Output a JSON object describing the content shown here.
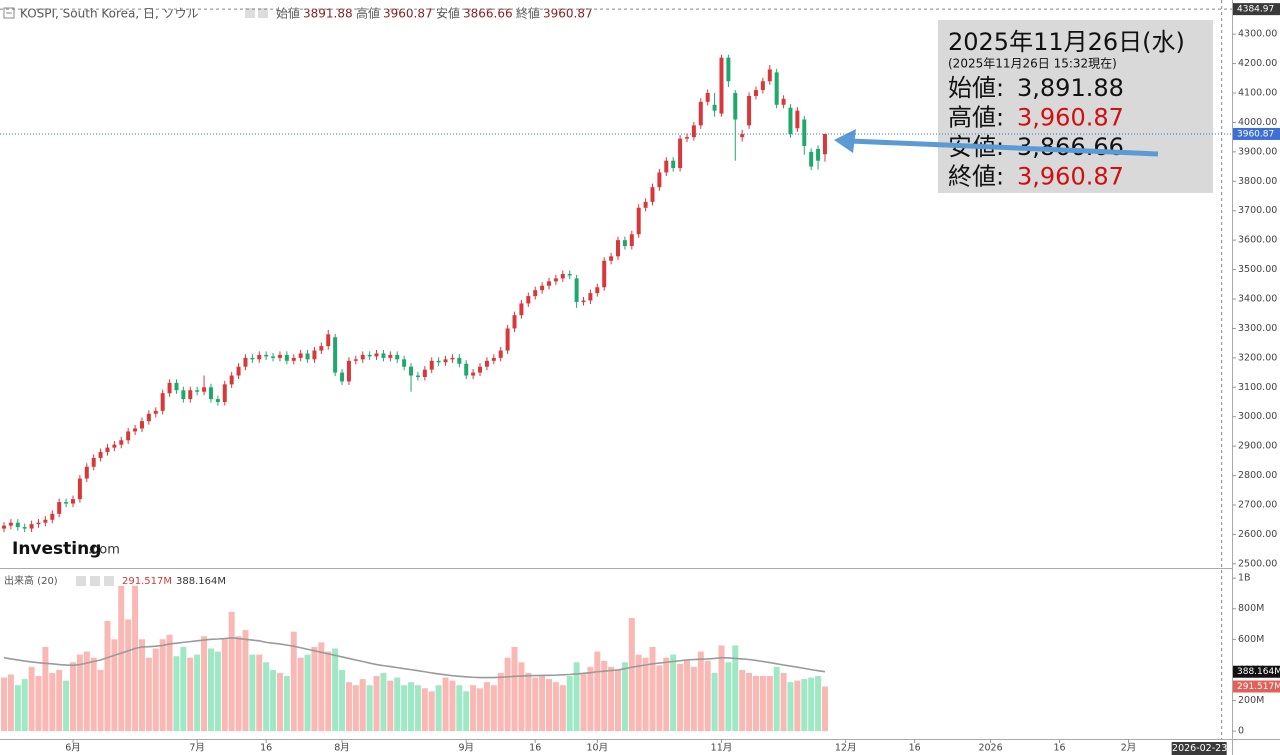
{
  "chart_data": {
    "type": "candlestick",
    "title": "KOSPI, South Korea, 日, ソウル",
    "header_labels": [
      "始値",
      "高値",
      "安値",
      "終値"
    ],
    "up_color": "#d9383a",
    "down_color": "#1fa86b",
    "up_volume_color": "#f9b8b3",
    "down_volume_color": "#9ee8c5",
    "ma_color": "#9a9a9a",
    "candles": [
      [
        2620,
        2642,
        2608,
        2630
      ],
      [
        2630,
        2652,
        2618,
        2640
      ],
      [
        2640,
        2652,
        2613,
        2625
      ],
      [
        2625,
        2637,
        2608,
        2620
      ],
      [
        2620,
        2647,
        2608,
        2635
      ],
      [
        2635,
        2652,
        2623,
        2640
      ],
      [
        2640,
        2662,
        2628,
        2650
      ],
      [
        2650,
        2682,
        2638,
        2670
      ],
      [
        2670,
        2722,
        2658,
        2710
      ],
      [
        2710,
        2722,
        2693,
        2705
      ],
      [
        2705,
        2732,
        2693,
        2720
      ],
      [
        2720,
        2802,
        2708,
        2790
      ],
      [
        2790,
        2842,
        2778,
        2830
      ],
      [
        2830,
        2872,
        2818,
        2860
      ],
      [
        2860,
        2892,
        2848,
        2880
      ],
      [
        2880,
        2907,
        2868,
        2895
      ],
      [
        2895,
        2917,
        2883,
        2905
      ],
      [
        2905,
        2932,
        2893,
        2920
      ],
      [
        2920,
        2962,
        2908,
        2950
      ],
      [
        2950,
        2972,
        2938,
        2960
      ],
      [
        2960,
        2997,
        2948,
        2985
      ],
      [
        2985,
        3022,
        2973,
        3010
      ],
      [
        3010,
        3032,
        2998,
        3020
      ],
      [
        3020,
        3092,
        3008,
        3080
      ],
      [
        3080,
        3127,
        3068,
        3115
      ],
      [
        3115,
        3127,
        3078,
        3090
      ],
      [
        3090,
        3102,
        3048,
        3060
      ],
      [
        3060,
        3102,
        3048,
        3090
      ],
      [
        3090,
        3102,
        3073,
        3085
      ],
      [
        3085,
        3140,
        3073,
        3100
      ],
      [
        3100,
        3112,
        3048,
        3060
      ],
      [
        3060,
        3072,
        3038,
        3050
      ],
      [
        3050,
        3122,
        3038,
        3110
      ],
      [
        3110,
        3152,
        3098,
        3140
      ],
      [
        3140,
        3182,
        3128,
        3170
      ],
      [
        3170,
        3212,
        3158,
        3200
      ],
      [
        3200,
        3212,
        3183,
        3195
      ],
      [
        3195,
        3222,
        3183,
        3210
      ],
      [
        3210,
        3222,
        3193,
        3205
      ],
      [
        3205,
        3217,
        3188,
        3200
      ],
      [
        3200,
        3222,
        3188,
        3210
      ],
      [
        3210,
        3222,
        3178,
        3190
      ],
      [
        3190,
        3212,
        3178,
        3200
      ],
      [
        3200,
        3227,
        3188,
        3215
      ],
      [
        3215,
        3227,
        3183,
        3195
      ],
      [
        3195,
        3237,
        3183,
        3225
      ],
      [
        3225,
        3252,
        3213,
        3240
      ],
      [
        3240,
        3295,
        3228,
        3280
      ],
      [
        3270,
        3282,
        3138,
        3150
      ],
      [
        3150,
        3162,
        3108,
        3120
      ],
      [
        3120,
        3202,
        3108,
        3190
      ],
      [
        3190,
        3207,
        3178,
        3195
      ],
      [
        3195,
        3222,
        3183,
        3210
      ],
      [
        3210,
        3222,
        3193,
        3205
      ],
      [
        3205,
        3227,
        3193,
        3215
      ],
      [
        3215,
        3227,
        3188,
        3200
      ],
      [
        3200,
        3222,
        3188,
        3210
      ],
      [
        3210,
        3222,
        3183,
        3195
      ],
      [
        3195,
        3207,
        3158,
        3170
      ],
      [
        3170,
        3182,
        3085,
        3140
      ],
      [
        3140,
        3152,
        3123,
        3135
      ],
      [
        3135,
        3172,
        3123,
        3160
      ],
      [
        3160,
        3202,
        3148,
        3190
      ],
      [
        3190,
        3202,
        3173,
        3185
      ],
      [
        3185,
        3207,
        3173,
        3195
      ],
      [
        3195,
        3212,
        3183,
        3200
      ],
      [
        3200,
        3212,
        3168,
        3180
      ],
      [
        3180,
        3192,
        3128,
        3140
      ],
      [
        3140,
        3162,
        3128,
        3150
      ],
      [
        3150,
        3182,
        3138,
        3170
      ],
      [
        3170,
        3202,
        3158,
        3190
      ],
      [
        3190,
        3212,
        3178,
        3200
      ],
      [
        3200,
        3237,
        3188,
        3225
      ],
      [
        3225,
        3312,
        3213,
        3300
      ],
      [
        3300,
        3357,
        3288,
        3345
      ],
      [
        3345,
        3397,
        3333,
        3385
      ],
      [
        3385,
        3422,
        3373,
        3410
      ],
      [
        3410,
        3442,
        3398,
        3430
      ],
      [
        3430,
        3457,
        3418,
        3445
      ],
      [
        3445,
        3472,
        3433,
        3460
      ],
      [
        3460,
        3482,
        3448,
        3470
      ],
      [
        3470,
        3497,
        3458,
        3485
      ],
      [
        3485,
        3497,
        3468,
        3480
      ],
      [
        3470,
        3482,
        3370,
        3390
      ],
      [
        3390,
        3407,
        3378,
        3395
      ],
      [
        3395,
        3432,
        3383,
        3420
      ],
      [
        3420,
        3452,
        3408,
        3440
      ],
      [
        3440,
        3542,
        3428,
        3530
      ],
      [
        3530,
        3557,
        3518,
        3545
      ],
      [
        3545,
        3612,
        3533,
        3600
      ],
      [
        3600,
        3612,
        3568,
        3580
      ],
      [
        3580,
        3632,
        3568,
        3620
      ],
      [
        3620,
        3722,
        3608,
        3710
      ],
      [
        3710,
        3742,
        3698,
        3730
      ],
      [
        3730,
        3792,
        3718,
        3780
      ],
      [
        3780,
        3842,
        3768,
        3830
      ],
      [
        3830,
        3882,
        3818,
        3870
      ],
      [
        3870,
        3882,
        3833,
        3845
      ],
      [
        3845,
        3957,
        3833,
        3945
      ],
      [
        3945,
        3962,
        3933,
        3950
      ],
      [
        3950,
        4002,
        3938,
        3990
      ],
      [
        3990,
        4082,
        3978,
        4070
      ],
      [
        4070,
        4112,
        4058,
        4100
      ],
      [
        4060,
        4100,
        4020,
        4040
      ],
      [
        4030,
        4230,
        4020,
        4220
      ],
      [
        4220,
        4230,
        4120,
        4140
      ],
      [
        4100,
        4110,
        3870,
        4010
      ],
      [
        3950,
        3975,
        3935,
        3960
      ],
      [
        3990,
        4102,
        3978,
        4090
      ],
      [
        4090,
        4122,
        4078,
        4110
      ],
      [
        4110,
        4152,
        4098,
        4140
      ],
      [
        4140,
        4195,
        4128,
        4180
      ],
      [
        4170,
        4182,
        4048,
        4060
      ],
      [
        4060,
        4092,
        4048,
        4080
      ],
      [
        4050,
        4062,
        3948,
        3960
      ],
      [
        3980,
        4052,
        3968,
        4040
      ],
      [
        4010,
        4022,
        3890,
        3920
      ],
      [
        3900,
        3912,
        3838,
        3850
      ],
      [
        3910,
        3922,
        3840,
        3870
      ],
      [
        3891.88,
        3960.87,
        3866.66,
        3960.87
      ]
    ],
    "volume": [
      350000000.0,
      370000000.0,
      300000000.0,
      340000000.0,
      420000000.0,
      360000000.0,
      550000000.0,
      380000000.0,
      400000000.0,
      330000000.0,
      450000000.0,
      500000000.0,
      520000000.0,
      480000000.0,
      400000000.0,
      720000000.0,
      600000000.0,
      950000000.0,
      730000000.0,
      950000000.0,
      600000000.0,
      480000000.0,
      540000000.0,
      600000000.0,
      630000000.0,
      490000000.0,
      550000000.0,
      480000000.0,
      500000000.0,
      620000000.0,
      540000000.0,
      520000000.0,
      600000000.0,
      780000000.0,
      620000000.0,
      660000000.0,
      500000000.0,
      500000000.0,
      450000000.0,
      400000000.0,
      380000000.0,
      360000000.0,
      650000000.0,
      480000000.0,
      500000000.0,
      550000000.0,
      580000000.0,
      520000000.0,
      540000000.0,
      400000000.0,
      320000000.0,
      300000000.0,
      340000000.0,
      300000000.0,
      360000000.0,
      380000000.0,
      330000000.0,
      350000000.0,
      300000000.0,
      320000000.0,
      300000000.0,
      280000000.0,
      260000000.0,
      300000000.0,
      350000000.0,
      330000000.0,
      300000000.0,
      260000000.0,
      300000000.0,
      280000000.0,
      320000000.0,
      300000000.0,
      380000000.0,
      480000000.0,
      550000000.0,
      450000000.0,
      380000000.0,
      350000000.0,
      360000000.0,
      340000000.0,
      320000000.0,
      300000000.0,
      360000000.0,
      450000000.0,
      380000000.0,
      420000000.0,
      520000000.0,
      460000000.0,
      420000000.0,
      400000000.0,
      450000000.0,
      740000000.0,
      500000000.0,
      480000000.0,
      550000000.0,
      430000000.0,
      480000000.0,
      500000000.0,
      440000000.0,
      460000000.0,
      420000000.0,
      520000000.0,
      460000000.0,
      380000000.0,
      560000000.0,
      450000000.0,
      560000000.0,
      400000000.0,
      380000000.0,
      360000000.0,
      360000000.0,
      360000000.0,
      420000000.0,
      380000000.0,
      320000000.0,
      330000000.0,
      340000000.0,
      350000000.0,
      360000000.0,
      291517000.0
    ],
    "volume_ma": [
      480000000.0,
      472000000.0,
      465000000.0,
      458000000.0,
      452000000.0,
      447000000.0,
      443000000.0,
      440000000.0,
      435000000.0,
      432000000.0,
      430000000.0,
      435000000.0,
      445000000.0,
      455000000.0,
      465000000.0,
      480000000.0,
      495000000.0,
      510000000.0,
      525000000.0,
      540000000.0,
      550000000.0,
      552000000.0,
      555000000.0,
      560000000.0,
      570000000.0,
      575000000.0,
      580000000.0,
      585000000.0,
      590000000.0,
      595000000.0,
      600000000.0,
      602000000.0,
      605000000.0,
      610000000.0,
      605000000.0,
      600000000.0,
      595000000.0,
      590000000.0,
      580000000.0,
      575000000.0,
      570000000.0,
      562000000.0,
      555000000.0,
      545000000.0,
      535000000.0,
      525000000.0,
      515000000.0,
      505000000.0,
      495000000.0,
      485000000.0,
      475000000.0,
      465000000.0,
      455000000.0,
      445000000.0,
      435000000.0,
      428000000.0,
      422000000.0,
      415000000.0,
      408000000.0,
      402000000.0,
      395000000.0,
      388000000.0,
      380000000.0,
      374000000.0,
      368000000.0,
      362000000.0,
      358000000.0,
      355000000.0,
      352000000.0,
      350000000.0,
      350000000.0,
      350000000.0,
      352000000.0,
      355000000.0,
      358000000.0,
      360000000.0,
      362000000.0,
      363000000.0,
      364000000.0,
      365000000.0,
      366000000.0,
      368000000.0,
      370000000.0,
      374000000.0,
      378000000.0,
      382000000.0,
      388000000.0,
      392000000.0,
      396000000.0,
      400000000.0,
      408000000.0,
      418000000.0,
      425000000.0,
      432000000.0,
      440000000.0,
      445000000.0,
      450000000.0,
      455000000.0,
      460000000.0,
      465000000.0,
      468000000.0,
      470000000.0,
      472000000.0,
      475000000.0,
      480000000.0,
      478000000.0,
      475000000.0,
      472000000.0,
      468000000.0,
      462000000.0,
      455000000.0,
      448000000.0,
      440000000.0,
      432000000.0,
      425000000.0,
      418000000.0,
      410000000.0,
      402000000.0,
      395000000.0,
      388164000.0
    ],
    "volume_legend": {
      "title": "出来高 (20)",
      "values": [
        291517000.0,
        388164000.0
      ],
      "value_labels": [
        "291.517M",
        "388.164M"
      ]
    },
    "xlim": [
      0,
      178
    ],
    "xticks": [
      {
        "value": 10,
        "label": "6月"
      },
      {
        "value": 28,
        "label": "7月"
      },
      {
        "value": 38,
        "label": "16"
      },
      {
        "value": 49,
        "label": "8月"
      },
      {
        "value": 67,
        "label": "9月"
      },
      {
        "value": 77,
        "label": "16"
      },
      {
        "value": 86,
        "label": "10月"
      },
      {
        "value": 104,
        "label": "11月"
      },
      {
        "value": 122,
        "label": "12月"
      },
      {
        "value": 132,
        "label": "16"
      },
      {
        "value": 143,
        "label": "2026"
      },
      {
        "value": 153,
        "label": "16"
      },
      {
        "value": 163,
        "label": "2月"
      }
    ],
    "cursor": {
      "value": 176.5,
      "label": "2026-02-23"
    },
    "ylim": [
      2486,
      4416
    ],
    "yticks": [
      {
        "value": 2500,
        "label": "2500.00"
      },
      {
        "value": 2600,
        "label": "2600.00"
      },
      {
        "value": 2700,
        "label": "2700.00"
      },
      {
        "value": 2800,
        "label": "2800.00"
      },
      {
        "value": 2900,
        "label": "2900.00"
      },
      {
        "value": 3000,
        "label": "3000.00"
      },
      {
        "value": 3100,
        "label": "3100.00"
      },
      {
        "value": 3200,
        "label": "3200.00"
      },
      {
        "value": 3300,
        "label": "3300.00"
      },
      {
        "value": 3400,
        "label": "3400.00"
      },
      {
        "value": 3500,
        "label": "3500.00"
      },
      {
        "value": 3600,
        "label": "3600.00"
      },
      {
        "value": 3700,
        "label": "3700.00"
      },
      {
        "value": 3800,
        "label": "3800.00"
      },
      {
        "value": 3900,
        "label": "3900.00"
      },
      {
        "value": 4000,
        "label": "4000.00"
      },
      {
        "value": 4100,
        "label": "4100.00"
      },
      {
        "value": 4200,
        "label": "4200.00"
      },
      {
        "value": 4300,
        "label": "4300.00"
      }
    ],
    "top_price": 4384.97,
    "y2lim": [
      -45000000.0,
      1040000000.0
    ],
    "y2ticks": [
      0,
      {
        "value": 200000000,
        "label": "200M"
      },
      {
        "value": 400000000,
        "label": "400M"
      },
      {
        "value": 600000000,
        "label": "600M"
      },
      {
        "value": 800000000,
        "label": "800M"
      },
      {
        "value": 1000000000,
        "label": "1B"
      }
    ],
    "tooltip": {
      "title": "2025年11月26日(水)",
      "subtitle": "(2025年11月26日 15:32現在)",
      "labels": [
        "始値:",
        "高値:",
        "安値:",
        "終値:"
      ],
      "values": [
        3891.88,
        3960.87,
        3866.66,
        3960.87
      ],
      "value_labels": [
        "3,891.88",
        "3,960.87",
        "3,866.66",
        "3,960.87"
      ]
    },
    "watermark": "Investing",
    "watermark_suffix": ".com"
  }
}
